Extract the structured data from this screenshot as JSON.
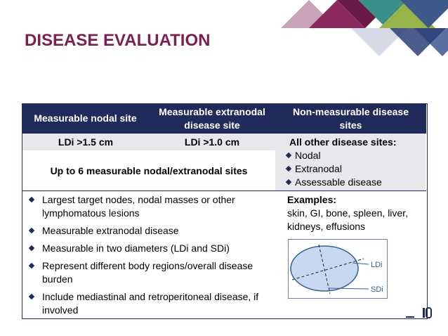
{
  "header": {
    "title": "DISEASE EVALUATION"
  },
  "table": {
    "columns": [
      "Measurable nodal site",
      "Measurable extranodal disease site",
      "Non-measurable disease sites"
    ],
    "thresholds": [
      "LDi >1.5 cm",
      "LDi >1.0 cm"
    ],
    "limit": "Up to 6 measurable nodal/extranodal sites",
    "other_sites": {
      "heading": "All other disease sites:",
      "items": [
        "Nodal",
        "Extranodal",
        "Assessable disease"
      ]
    },
    "criteria": [
      "Largest target nodes, nodal masses or other lymphomatous lesions",
      "Measurable extranodal disease",
      "Measurable in two diameters (LDi  and SDi)",
      "Represent different body regions/overall disease burden",
      "Include mediastinal and retroperitoneal disease, if involved"
    ],
    "examples": {
      "heading": "Examples:",
      "text": "skin, GI, bone, spleen, liver, kidneys, effusions"
    },
    "diagram_labels": [
      "LDi",
      "SDi"
    ]
  }
}
